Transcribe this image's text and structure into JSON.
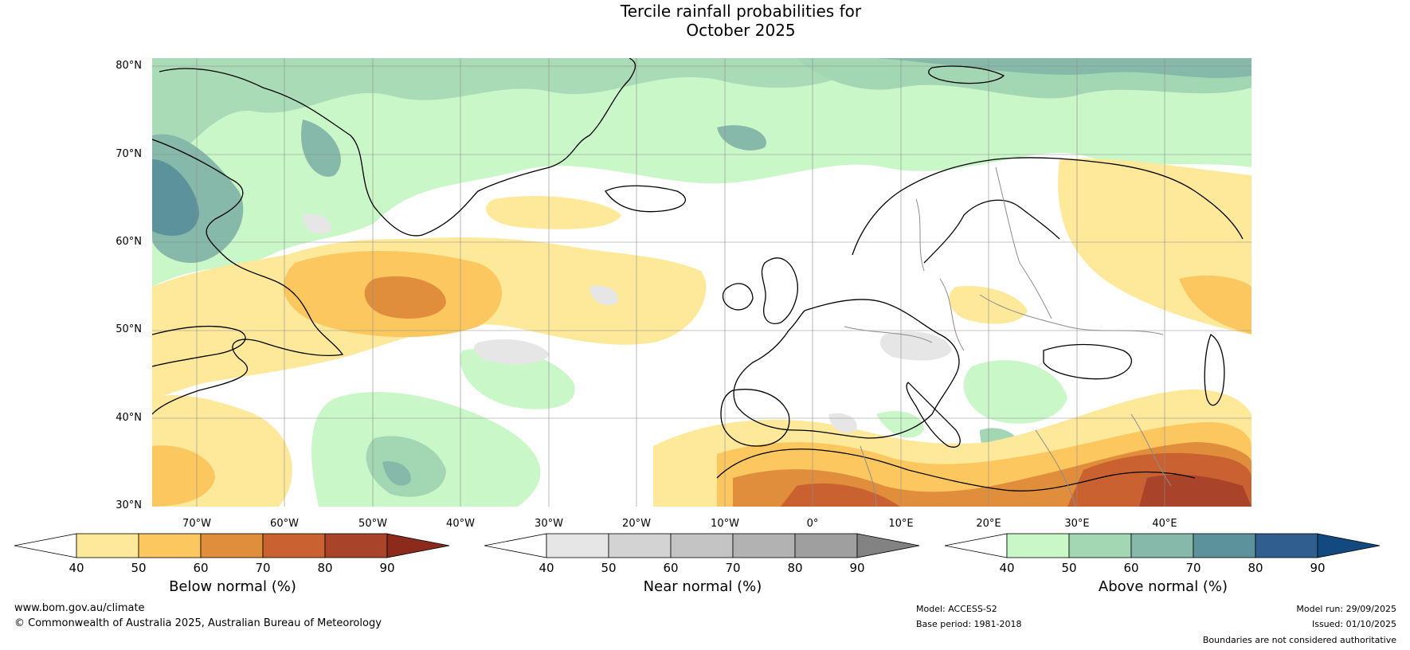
{
  "title": {
    "line1": "Tercile rainfall probabilities for",
    "line2": "October 2025"
  },
  "map": {
    "lat_labels": [
      "80°N",
      "70°N",
      "60°N",
      "50°N",
      "40°N",
      "30°N"
    ],
    "lon_labels": [
      "70°W",
      "60°W",
      "50°W",
      "40°W",
      "30°W",
      "20°W",
      "10°W",
      "0°",
      "10°E",
      "20°E",
      "30°E",
      "40°E"
    ]
  },
  "colorbars": [
    {
      "title": "Below normal (%)",
      "ticks": [
        "40",
        "50",
        "60",
        "70",
        "80",
        "90"
      ],
      "colors": [
        "#ffffff",
        "#fee89a",
        "#fdc760",
        "#e08e3c",
        "#c96230",
        "#a9432a",
        "#8c2a1c"
      ]
    },
    {
      "title": "Near normal (%)",
      "ticks": [
        "40",
        "50",
        "60",
        "70",
        "80",
        "90"
      ],
      "colors": [
        "#ffffff",
        "#e6e6e6",
        "#d3d3d3",
        "#c4c4c4",
        "#b2b2b2",
        "#9f9f9f",
        "#828282"
      ]
    },
    {
      "title": "Above normal (%)",
      "ticks": [
        "40",
        "50",
        "60",
        "70",
        "80",
        "90"
      ],
      "colors": [
        "#ffffff",
        "#c9f7c8",
        "#a3d6b3",
        "#86b9aa",
        "#5c929c",
        "#305f8f",
        "#124a80"
      ]
    }
  ],
  "footer": {
    "website": "www.bom.gov.au/climate",
    "copyright": "© Commonwealth of Australia 2025, Australian Bureau of Meteorology",
    "model": "Model: ACCESS-S2",
    "base_period": "Base period: 1981-2018",
    "model_run": "Model run: 29/09/2025",
    "issued": "Issued: 01/10/2025",
    "disclaimer": "Boundaries are not considered authoritative"
  }
}
